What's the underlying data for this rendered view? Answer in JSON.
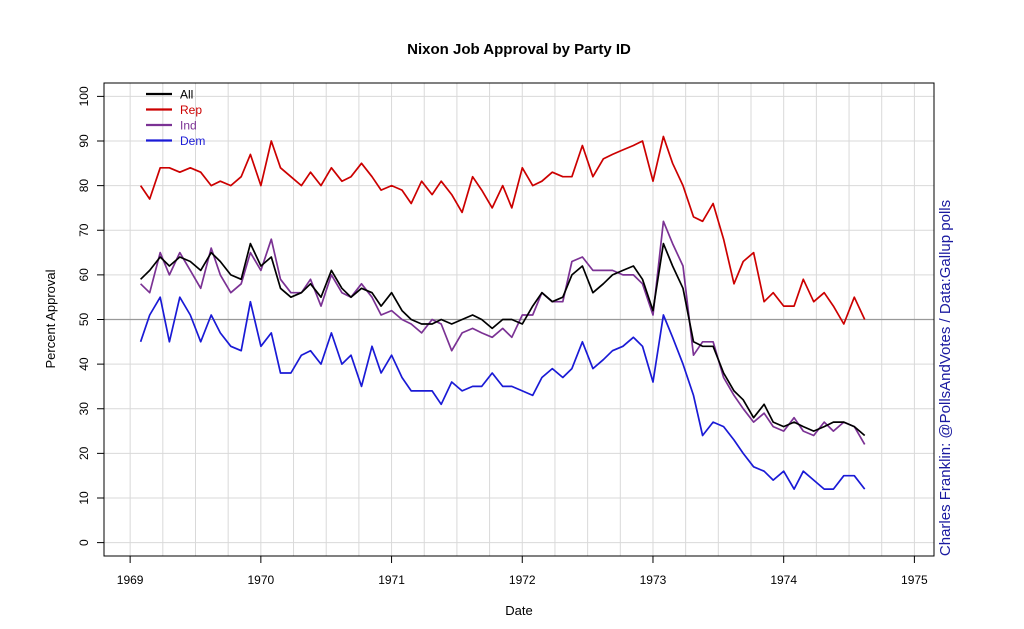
{
  "chart_data": {
    "type": "line",
    "title": "Nixon Job Approval by Party ID",
    "xlabel": "Date",
    "ylabel": "Percent Approval",
    "credit": "Charles Franklin: @PollsAndVotes / Data:Gallup polls",
    "xlim": [
      1968.8,
      1975.15
    ],
    "ylim": [
      -3,
      103
    ],
    "x_ticks": [
      1969,
      1970,
      1971,
      1972,
      1973,
      1974,
      1975
    ],
    "y_ticks": [
      0,
      10,
      20,
      30,
      40,
      50,
      60,
      70,
      80,
      90,
      100
    ],
    "reference_line": 50,
    "grid": true,
    "legend_position": "top-left",
    "x": [
      1969.08,
      1969.15,
      1969.23,
      1969.3,
      1969.38,
      1969.46,
      1969.54,
      1969.62,
      1969.69,
      1969.77,
      1969.85,
      1969.92,
      1970.0,
      1970.08,
      1970.15,
      1970.23,
      1970.31,
      1970.38,
      1970.46,
      1970.54,
      1970.62,
      1970.69,
      1970.77,
      1970.85,
      1970.92,
      1971.0,
      1971.08,
      1971.15,
      1971.23,
      1971.31,
      1971.38,
      1971.46,
      1971.54,
      1971.62,
      1971.69,
      1971.77,
      1971.85,
      1971.92,
      1972.0,
      1972.08,
      1972.15,
      1972.23,
      1972.31,
      1972.38,
      1972.46,
      1972.54,
      1972.62,
      1972.69,
      1972.77,
      1972.85,
      1972.92,
      1973.0,
      1973.08,
      1973.15,
      1973.23,
      1973.31,
      1973.38,
      1973.46,
      1973.54,
      1973.62,
      1973.69,
      1973.77,
      1973.85,
      1973.92,
      1974.0,
      1974.08,
      1974.15,
      1974.23,
      1974.31,
      1974.38,
      1974.46,
      1974.54,
      1974.62
    ],
    "series": [
      {
        "name": "All",
        "color": "#000000",
        "values": [
          59,
          61,
          64,
          62,
          64,
          63,
          61,
          65,
          63,
          60,
          59,
          67,
          62,
          64,
          57,
          55,
          56,
          58,
          55,
          61,
          57,
          55,
          57,
          56,
          53,
          56,
          52,
          50,
          49,
          49,
          50,
          49,
          50,
          51,
          50,
          48,
          50,
          50,
          49,
          53,
          56,
          54,
          55,
          60,
          62,
          56,
          58,
          60,
          61,
          62,
          59,
          52,
          67,
          62,
          57,
          45,
          44,
          44,
          38,
          34,
          32,
          28,
          31,
          27,
          26,
          27,
          26,
          25,
          26,
          27,
          27,
          26,
          24
        ]
      },
      {
        "name": "Rep",
        "color": "#cc0000",
        "values": [
          80,
          77,
          84,
          84,
          83,
          84,
          83,
          80,
          81,
          80,
          82,
          87,
          80,
          90,
          84,
          82,
          80,
          83,
          80,
          84,
          81,
          82,
          85,
          82,
          79,
          80,
          79,
          76,
          81,
          78,
          81,
          78,
          74,
          82,
          79,
          75,
          80,
          75,
          84,
          80,
          81,
          83,
          82,
          82,
          89,
          82,
          86,
          87,
          88,
          89,
          90,
          81,
          91,
          85,
          80,
          73,
          72,
          76,
          68,
          58,
          63,
          65,
          54,
          56,
          53,
          53,
          59,
          54,
          56,
          53,
          49,
          55,
          50
        ]
      },
      {
        "name": "Ind",
        "color": "#7b3294",
        "values": [
          58,
          56,
          65,
          60,
          65,
          61,
          57,
          66,
          60,
          56,
          58,
          65,
          61,
          68,
          59,
          56,
          56,
          59,
          53,
          60,
          56,
          55,
          58,
          55,
          51,
          52,
          50,
          49,
          47,
          50,
          49,
          43,
          47,
          48,
          47,
          46,
          48,
          46,
          51,
          51,
          56,
          54,
          54,
          63,
          64,
          61,
          61,
          61,
          60,
          60,
          58,
          51,
          72,
          67,
          62,
          42,
          45,
          45,
          37,
          33,
          30,
          27,
          29,
          26,
          25,
          28,
          25,
          24,
          27,
          25,
          27,
          26,
          22
        ]
      },
      {
        "name": "Dem",
        "color": "#1a1ad6",
        "values": [
          45,
          51,
          55,
          45,
          55,
          51,
          45,
          51,
          47,
          44,
          43,
          54,
          44,
          47,
          38,
          38,
          42,
          43,
          40,
          47,
          40,
          42,
          35,
          44,
          38,
          42,
          37,
          34,
          34,
          34,
          31,
          36,
          34,
          35,
          35,
          38,
          35,
          35,
          34,
          33,
          37,
          39,
          37,
          39,
          45,
          39,
          41,
          43,
          44,
          46,
          44,
          36,
          51,
          46,
          40,
          33,
          24,
          27,
          26,
          23,
          20,
          17,
          16,
          14,
          16,
          12,
          16,
          14,
          12,
          12,
          15,
          15,
          12
        ]
      }
    ]
  }
}
